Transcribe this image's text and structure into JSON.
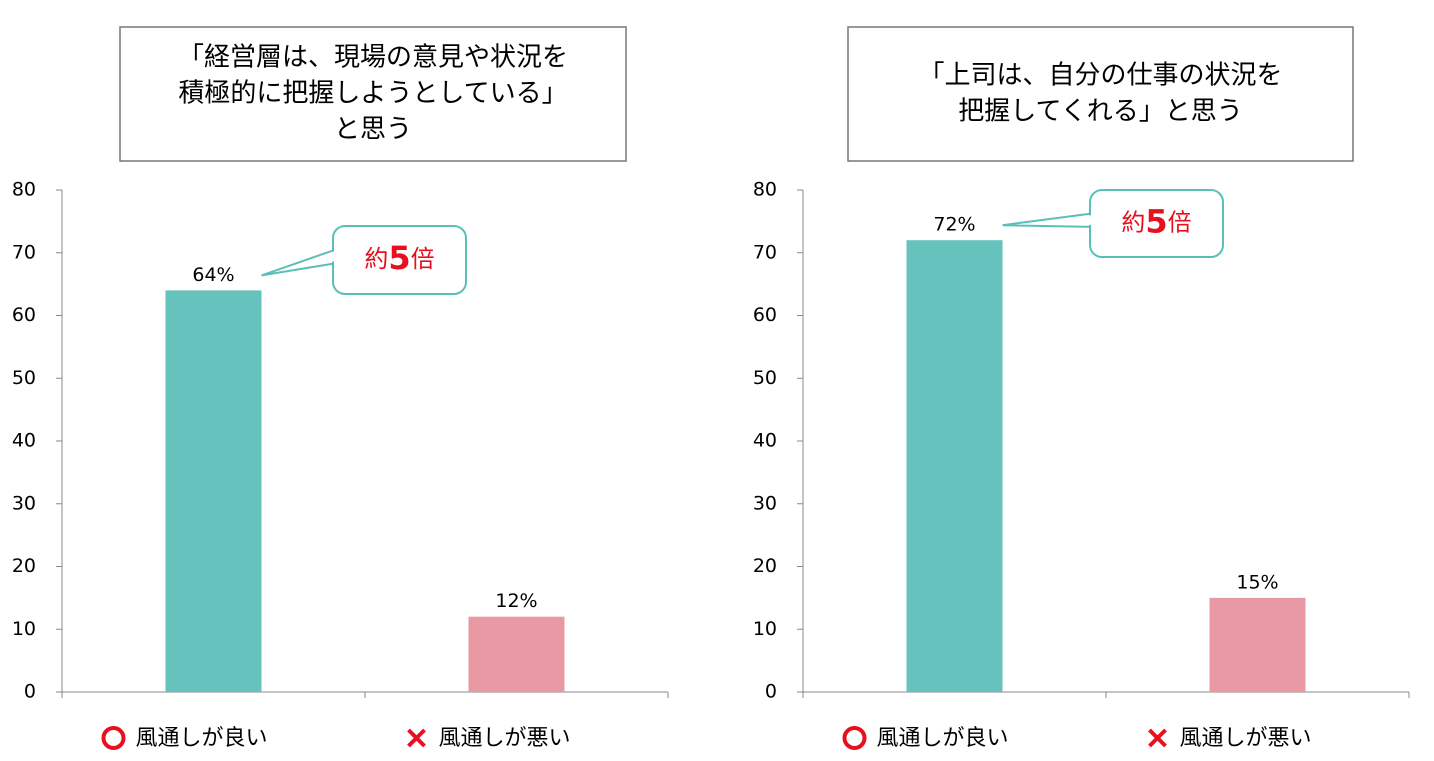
{
  "chart_data": [
    {
      "type": "bar",
      "title": [
        "「経営層は、現場の意見や状況を",
        "積極的に把握しようとしている」",
        "と思う"
      ],
      "categories": [
        "風通しが良い",
        "風通しが悪い"
      ],
      "values": [
        64,
        12
      ],
      "value_labels": [
        "64%",
        "12%"
      ],
      "colors": [
        "#66c2bd",
        "#e899a4"
      ],
      "ylim": [
        0,
        80
      ],
      "yticks": [
        0,
        10,
        20,
        30,
        40,
        50,
        60,
        70,
        80
      ],
      "annotation": [
        "約",
        "5",
        "倍"
      ]
    },
    {
      "type": "bar",
      "title": [
        "「上司は、自分の仕事の状況を",
        "把握してくれる」と思う"
      ],
      "categories": [
        "風通しが良い",
        "風通しが悪い"
      ],
      "values": [
        72,
        15
      ],
      "value_labels": [
        "72%",
        "15%"
      ],
      "colors": [
        "#66c2bd",
        "#e899a4"
      ],
      "ylim": [
        0,
        80
      ],
      "yticks": [
        0,
        10,
        20,
        30,
        40,
        50,
        60,
        70,
        80
      ],
      "annotation": [
        "約",
        "5",
        "倍"
      ]
    }
  ]
}
